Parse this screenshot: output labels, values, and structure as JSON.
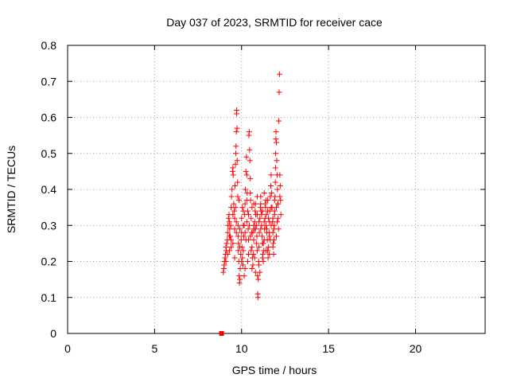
{
  "chart_data": {
    "type": "scatter",
    "title": "Day 037 of 2023, SRMTID for receiver cace",
    "xlabel": "GPS time / hours",
    "ylabel": "SRMTID / TECUs",
    "xlim": [
      0,
      24
    ],
    "ylim": [
      0,
      0.8
    ],
    "xticks": [
      0,
      5,
      10,
      15,
      20
    ],
    "xtick_labels": [
      "0",
      "5",
      "10",
      "15",
      "20"
    ],
    "yticks": [
      0,
      0.1,
      0.2,
      0.3,
      0.4,
      0.5,
      0.6,
      0.7,
      0.8
    ],
    "ytick_labels": [
      "0",
      "0.1",
      "0.2",
      "0.3",
      "0.4",
      "0.5",
      "0.6",
      "0.7",
      "0.8"
    ],
    "grid": true,
    "marker": "plus",
    "color": "#ff0000",
    "zero_marker": {
      "x": 8.85,
      "y": 0
    },
    "series": [
      {
        "name": "SRMTID",
        "points": [
          [
            8.95,
            0.17
          ],
          [
            8.98,
            0.18
          ],
          [
            9.0,
            0.19
          ],
          [
            9.02,
            0.2
          ],
          [
            9.05,
            0.21
          ],
          [
            9.08,
            0.22
          ],
          [
            9.1,
            0.24
          ],
          [
            9.12,
            0.23
          ],
          [
            9.15,
            0.25
          ],
          [
            9.18,
            0.26
          ],
          [
            9.2,
            0.28
          ],
          [
            9.22,
            0.3
          ],
          [
            9.25,
            0.32
          ],
          [
            9.28,
            0.33
          ],
          [
            9.3,
            0.31
          ],
          [
            9.32,
            0.29
          ],
          [
            9.35,
            0.27
          ],
          [
            9.38,
            0.3
          ],
          [
            9.4,
            0.35
          ],
          [
            9.42,
            0.38
          ],
          [
            9.45,
            0.4
          ],
          [
            9.48,
            0.45
          ],
          [
            9.5,
            0.46
          ],
          [
            9.52,
            0.44
          ],
          [
            9.55,
            0.36
          ],
          [
            9.58,
            0.34
          ],
          [
            9.6,
            0.32
          ],
          [
            9.62,
            0.41
          ],
          [
            9.65,
            0.47
          ],
          [
            9.67,
            0.5
          ],
          [
            9.68,
            0.52
          ],
          [
            9.7,
            0.56
          ],
          [
            9.71,
            0.61
          ],
          [
            9.72,
            0.62
          ],
          [
            9.74,
            0.57
          ],
          [
            9.75,
            0.48
          ],
          [
            9.77,
            0.42
          ],
          [
            9.78,
            0.38
          ],
          [
            9.8,
            0.3
          ],
          [
            9.82,
            0.25
          ],
          [
            9.84,
            0.2
          ],
          [
            9.86,
            0.16
          ],
          [
            9.88,
            0.14
          ],
          [
            9.9,
            0.15
          ],
          [
            9.92,
            0.18
          ],
          [
            9.95,
            0.22
          ],
          [
            9.98,
            0.26
          ],
          [
            10.0,
            0.28
          ],
          [
            10.02,
            0.24
          ],
          [
            10.05,
            0.21
          ],
          [
            10.08,
            0.19
          ],
          [
            10.1,
            0.23
          ],
          [
            10.12,
            0.27
          ],
          [
            10.15,
            0.3
          ],
          [
            10.18,
            0.33
          ],
          [
            10.2,
            0.36
          ],
          [
            10.22,
            0.4
          ],
          [
            10.25,
            0.45
          ],
          [
            10.28,
            0.49
          ],
          [
            10.3,
            0.44
          ],
          [
            10.32,
            0.39
          ],
          [
            10.35,
            0.34
          ],
          [
            10.38,
            0.29
          ],
          [
            10.4,
            0.26
          ],
          [
            10.42,
            0.55
          ],
          [
            10.44,
            0.56
          ],
          [
            10.46,
            0.51
          ],
          [
            10.48,
            0.48
          ],
          [
            10.5,
            0.43
          ],
          [
            10.52,
            0.37
          ],
          [
            10.55,
            0.32
          ],
          [
            10.58,
            0.28
          ],
          [
            10.6,
            0.24
          ],
          [
            10.62,
            0.21
          ],
          [
            10.65,
            0.19
          ],
          [
            10.68,
            0.22
          ],
          [
            10.7,
            0.26
          ],
          [
            10.72,
            0.29
          ],
          [
            10.75,
            0.31
          ],
          [
            10.78,
            0.34
          ],
          [
            10.8,
            0.36
          ],
          [
            10.82,
            0.33
          ],
          [
            10.85,
            0.3
          ],
          [
            10.88,
            0.27
          ],
          [
            10.9,
            0.23
          ],
          [
            10.92,
            0.16
          ],
          [
            10.93,
            0.11
          ],
          [
            10.94,
            0.1
          ],
          [
            10.96,
            0.15
          ],
          [
            10.98,
            0.2
          ],
          [
            11.0,
            0.24
          ],
          [
            11.02,
            0.28
          ],
          [
            11.05,
            0.32
          ],
          [
            11.08,
            0.35
          ],
          [
            11.1,
            0.38
          ],
          [
            11.12,
            0.34
          ],
          [
            11.15,
            0.3
          ],
          [
            11.18,
            0.27
          ],
          [
            11.2,
            0.25
          ],
          [
            11.22,
            0.22
          ],
          [
            11.25,
            0.2
          ],
          [
            11.28,
            0.23
          ],
          [
            11.3,
            0.26
          ],
          [
            11.32,
            0.29
          ],
          [
            11.35,
            0.32
          ],
          [
            11.38,
            0.35
          ],
          [
            11.4,
            0.37
          ],
          [
            11.42,
            0.33
          ],
          [
            11.45,
            0.29
          ],
          [
            11.48,
            0.26
          ],
          [
            11.5,
            0.23
          ],
          [
            11.52,
            0.21
          ],
          [
            11.55,
            0.24
          ],
          [
            11.58,
            0.28
          ],
          [
            11.6,
            0.31
          ],
          [
            11.62,
            0.34
          ],
          [
            11.65,
            0.38
          ],
          [
            11.68,
            0.41
          ],
          [
            11.7,
            0.44
          ],
          [
            11.72,
            0.39
          ],
          [
            11.75,
            0.35
          ],
          [
            11.78,
            0.31
          ],
          [
            11.8,
            0.28
          ],
          [
            11.82,
            0.25
          ],
          [
            11.84,
            0.22
          ],
          [
            11.86,
            0.26
          ],
          [
            11.88,
            0.3
          ],
          [
            11.9,
            0.34
          ],
          [
            11.92,
            0.38
          ],
          [
            11.94,
            0.42
          ],
          [
            11.95,
            0.46
          ],
          [
            11.96,
            0.5
          ],
          [
            11.97,
            0.54
          ],
          [
            11.98,
            0.56
          ],
          [
            12.0,
            0.53
          ],
          [
            12.02,
            0.48
          ],
          [
            12.04,
            0.44
          ],
          [
            12.06,
            0.4
          ],
          [
            12.08,
            0.36
          ],
          [
            12.1,
            0.32
          ],
          [
            12.12,
            0.29
          ],
          [
            12.14,
            0.59
          ],
          [
            12.16,
            0.67
          ],
          [
            12.18,
            0.72
          ],
          [
            12.2,
            0.44
          ],
          [
            12.22,
            0.41
          ],
          [
            12.24,
            0.37
          ],
          [
            12.26,
            0.33
          ],
          [
            9.3,
            0.27
          ],
          [
            9.5,
            0.25
          ],
          [
            9.7,
            0.28
          ],
          [
            9.9,
            0.24
          ],
          [
            10.1,
            0.3
          ],
          [
            10.3,
            0.31
          ],
          [
            10.5,
            0.27
          ],
          [
            10.7,
            0.3
          ],
          [
            10.9,
            0.33
          ],
          [
            11.1,
            0.29
          ],
          [
            11.3,
            0.31
          ],
          [
            11.5,
            0.34
          ],
          [
            11.7,
            0.3
          ],
          [
            11.9,
            0.33
          ],
          [
            12.1,
            0.36
          ],
          [
            9.4,
            0.26
          ],
          [
            9.6,
            0.29
          ],
          [
            9.8,
            0.27
          ],
          [
            10.0,
            0.32
          ],
          [
            10.2,
            0.28
          ],
          [
            10.4,
            0.33
          ],
          [
            10.6,
            0.35
          ],
          [
            10.8,
            0.29
          ],
          [
            11.0,
            0.31
          ],
          [
            11.2,
            0.34
          ],
          [
            11.4,
            0.3
          ],
          [
            11.6,
            0.27
          ],
          [
            11.8,
            0.32
          ],
          [
            12.0,
            0.35
          ],
          [
            12.2,
            0.38
          ],
          [
            9.2,
            0.22
          ],
          [
            9.4,
            0.24
          ],
          [
            9.6,
            0.21
          ],
          [
            9.8,
            0.23
          ],
          [
            10.0,
            0.2
          ],
          [
            10.2,
            0.18
          ],
          [
            10.4,
            0.22
          ],
          [
            10.6,
            0.18
          ],
          [
            10.8,
            0.17
          ],
          [
            11.0,
            0.19
          ],
          [
            11.2,
            0.21
          ],
          [
            11.4,
            0.23
          ],
          [
            11.6,
            0.22
          ],
          [
            11.8,
            0.24
          ],
          [
            12.0,
            0.27
          ],
          [
            9.1,
            0.2
          ],
          [
            9.3,
            0.23
          ],
          [
            9.5,
            0.33
          ],
          [
            9.7,
            0.31
          ],
          [
            9.9,
            0.29
          ],
          [
            10.1,
            0.34
          ],
          [
            10.3,
            0.37
          ],
          [
            10.5,
            0.39
          ],
          [
            10.7,
            0.36
          ],
          [
            10.9,
            0.38
          ],
          [
            11.1,
            0.36
          ],
          [
            11.3,
            0.39
          ],
          [
            11.5,
            0.37
          ],
          [
            11.7,
            0.35
          ],
          [
            11.9,
            0.37
          ],
          [
            10.15,
            0.16
          ],
          [
            10.35,
            0.2
          ],
          [
            10.55,
            0.23
          ],
          [
            10.75,
            0.21
          ],
          [
            11.05,
            0.17
          ],
          [
            11.25,
            0.25
          ],
          [
            11.45,
            0.28
          ],
          [
            11.65,
            0.26
          ],
          [
            11.85,
            0.29
          ],
          [
            12.05,
            0.31
          ],
          [
            9.65,
            0.35
          ],
          [
            9.85,
            0.37
          ],
          [
            10.05,
            0.35
          ],
          [
            10.25,
            0.26
          ],
          [
            10.45,
            0.3
          ],
          [
            10.65,
            0.28
          ],
          [
            10.85,
            0.25
          ],
          [
            11.15,
            0.33
          ],
          [
            11.35,
            0.36
          ],
          [
            11.55,
            0.32
          ]
        ]
      }
    ]
  }
}
